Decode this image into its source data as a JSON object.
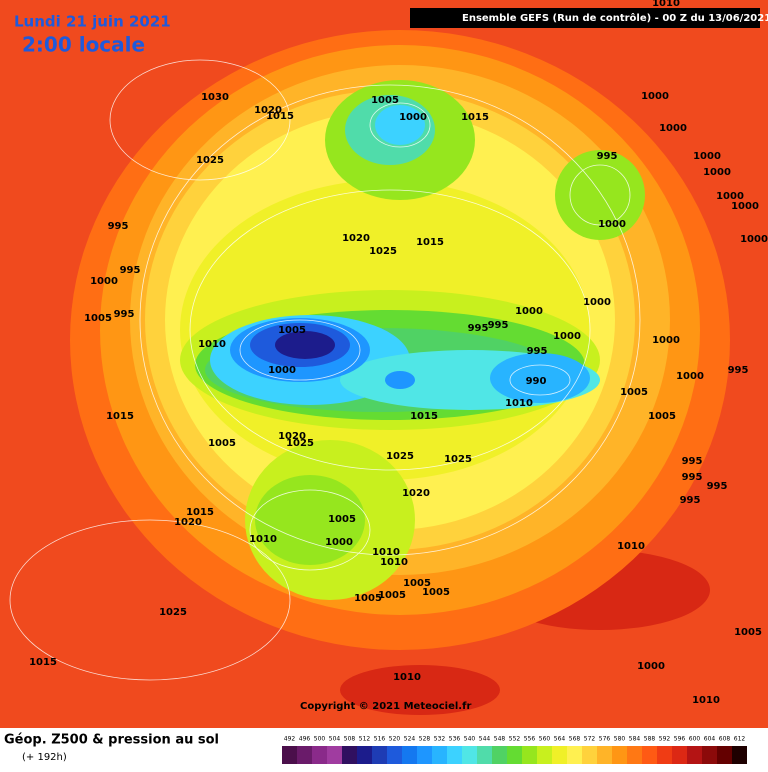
{
  "header": {
    "date": "Lundi 21 juin 2021",
    "time": "2:00 locale",
    "model": "Ensemble GEFS  (Run de contrôle)  -  00 Z du 13/06/2021"
  },
  "footer": {
    "copyright": "Copyright © 2021 Meteociel.fr",
    "field": "Géop. Z500 & pression au sol",
    "lead": "(+ 192h)"
  },
  "colorbar": {
    "labels": [
      492,
      496,
      500,
      504,
      508,
      512,
      516,
      520,
      524,
      528,
      532,
      536,
      540,
      544,
      548,
      552,
      556,
      560,
      564,
      568,
      572,
      576,
      580,
      584,
      588,
      592,
      596,
      600,
      604,
      608,
      612
    ],
    "colors": [
      "#4b0f4b",
      "#6a1b6a",
      "#8a2a8a",
      "#a03ca0",
      "#301060",
      "#1c1c8c",
      "#1e3cb4",
      "#1e5adc",
      "#1478f0",
      "#1e96ff",
      "#28b4ff",
      "#3cd2ff",
      "#50e6e6",
      "#50dcaa",
      "#50d264",
      "#64dc32",
      "#96e61e",
      "#c8f01e",
      "#f0f028",
      "#fff050",
      "#ffd23c",
      "#ffb428",
      "#ff9614",
      "#ff7814",
      "#ff5a14",
      "#f03c14",
      "#dc2814",
      "#b41414",
      "#8c0a0a",
      "#640000",
      "#1e0000"
    ]
  },
  "isobar_labels": [
    1030,
    1020,
    1015,
    1025,
    1005,
    1000,
    1015,
    1000,
    1000,
    995,
    1000,
    1000,
    1000,
    1000,
    1000,
    1000,
    995,
    1020,
    1025,
    1015,
    995,
    1000,
    1005,
    995,
    1000,
    1005,
    995,
    995,
    1000,
    1000,
    1000,
    1010,
    995,
    990,
    1000,
    1000,
    995,
    1005,
    1010,
    1015,
    1015,
    1005,
    1020,
    1025,
    1005,
    1025,
    1025,
    995,
    995,
    995,
    995,
    1020,
    1015,
    1020,
    1005,
    1010,
    1000,
    1010,
    1010,
    1010,
    1005,
    1005,
    1005,
    1005,
    1025,
    1005,
    1015,
    1000,
    1010,
    1010,
    1010
  ]
}
